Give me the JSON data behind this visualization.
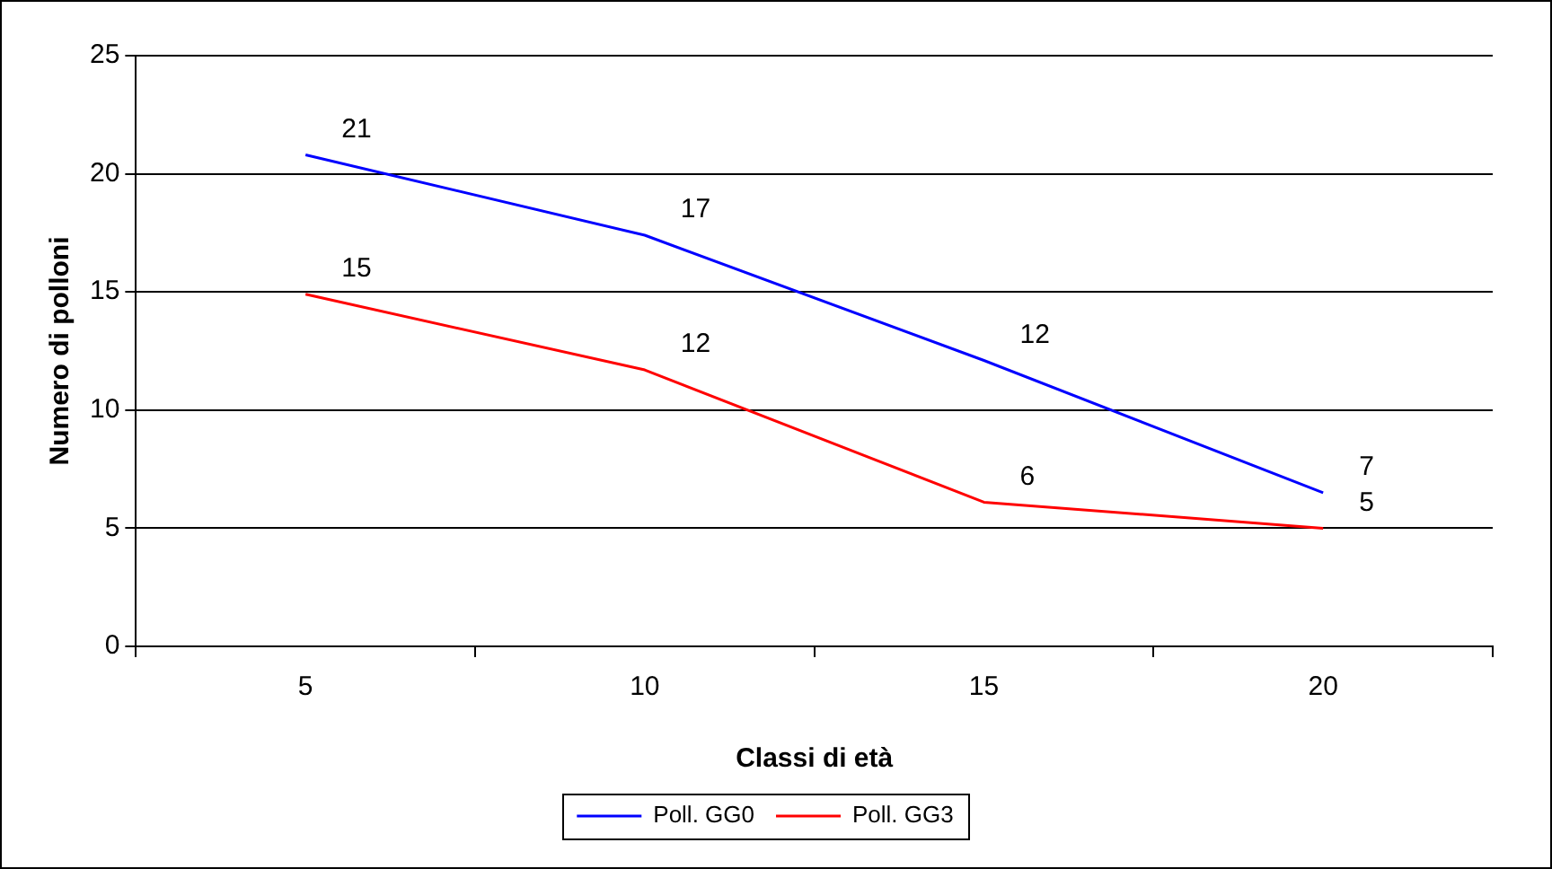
{
  "chart_data": {
    "type": "line",
    "xlabel": "Classi di età",
    "ylabel": "Numero di polloni",
    "categories": [
      "5",
      "10",
      "15",
      "20"
    ],
    "series": [
      {
        "name": "Poll. GG0",
        "color": "#0000ff",
        "values": [
          20.8,
          17.4,
          12.1,
          6.5
        ],
        "value_labels": [
          "21",
          "17",
          "12",
          "7"
        ]
      },
      {
        "name": "Poll. GG3",
        "color": "#ff0000",
        "values": [
          14.9,
          11.7,
          6.1,
          5.0
        ],
        "value_labels": [
          "15",
          "12",
          "6",
          "5"
        ]
      }
    ],
    "ylim": [
      0,
      25
    ],
    "yticks": [
      0,
      5,
      10,
      15,
      20,
      25
    ],
    "grid": "y",
    "legend": "bottom",
    "line_style": "solid"
  }
}
